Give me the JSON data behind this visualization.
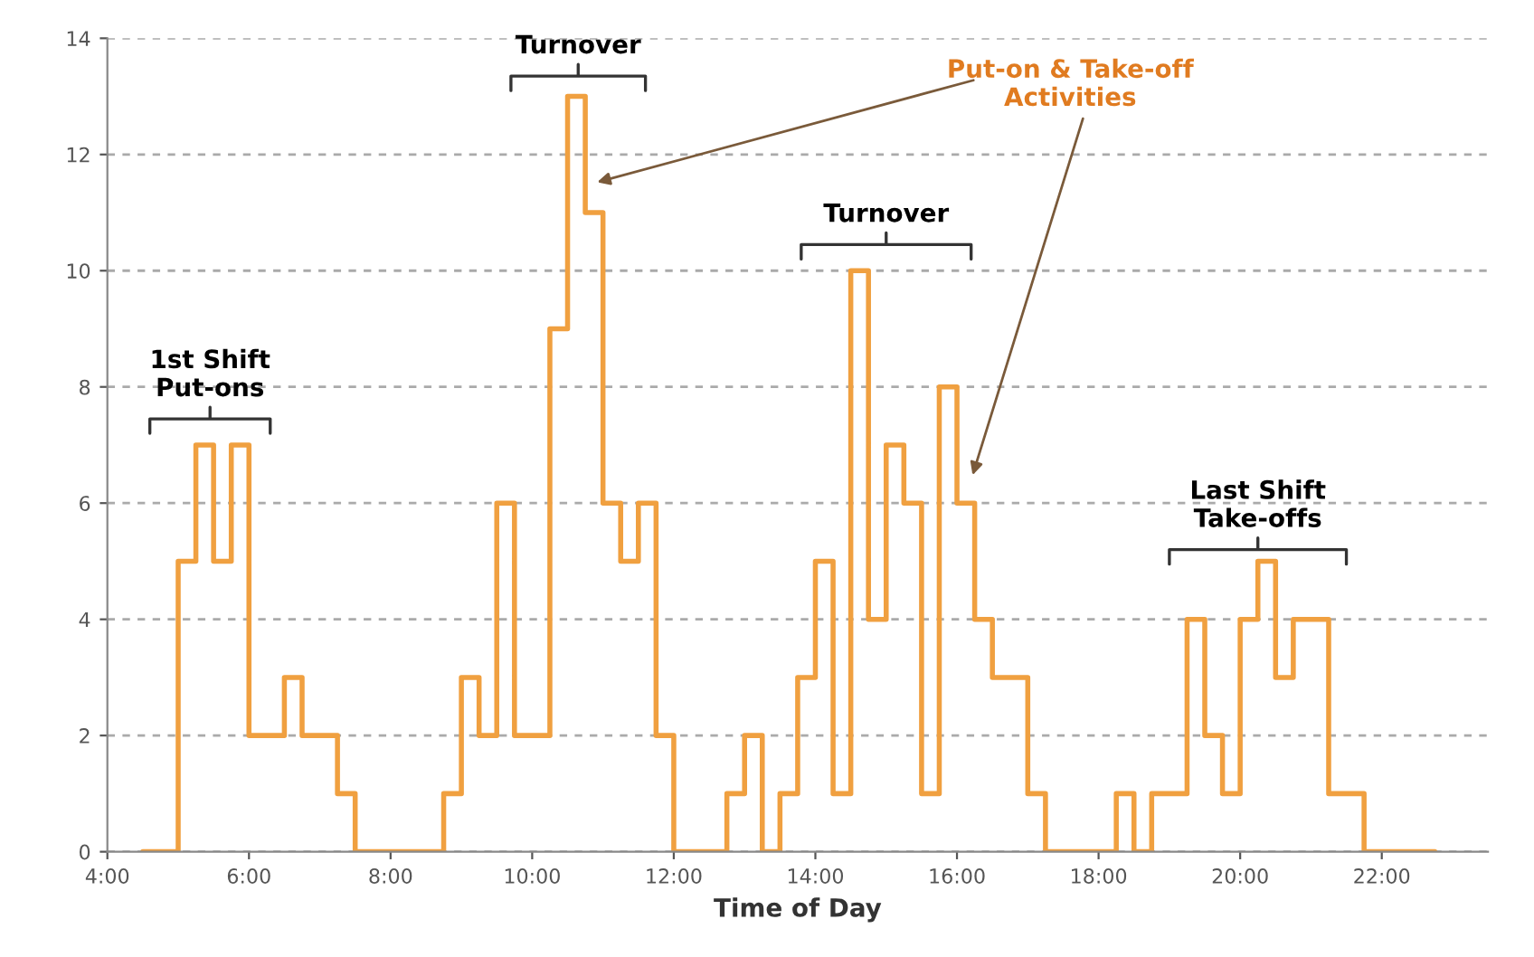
{
  "chart_data": {
    "type": "step",
    "xlabel": "Time of Day",
    "x": [
      4.5,
      4.75,
      5.0,
      5.25,
      5.5,
      5.75,
      6.0,
      6.25,
      6.5,
      6.75,
      7.0,
      7.25,
      7.5,
      7.75,
      8.0,
      8.25,
      8.5,
      8.75,
      9.0,
      9.25,
      9.5,
      9.75,
      10.0,
      10.25,
      10.5,
      10.75,
      11.0,
      11.25,
      11.5,
      11.75,
      12.0,
      12.25,
      12.5,
      12.75,
      13.0,
      13.25,
      13.5,
      13.75,
      14.0,
      14.25,
      14.5,
      14.75,
      15.0,
      15.25,
      15.5,
      15.75,
      16.0,
      16.25,
      16.5,
      16.75,
      17.0,
      17.25,
      17.5,
      17.75,
      18.0,
      18.25,
      18.5,
      18.75,
      19.0,
      19.25,
      19.5,
      19.75,
      20.0,
      20.25,
      20.5,
      20.75,
      21.0,
      21.25,
      21.5,
      21.75,
      22.0,
      22.25,
      22.5,
      22.75
    ],
    "series": [
      {
        "color": "#f0a040",
        "values": [
          0,
          0,
          5,
          7,
          5,
          7,
          2,
          2,
          3,
          2,
          2,
          1,
          0,
          0,
          0,
          0,
          0,
          1,
          3,
          2,
          6,
          2,
          2,
          9,
          13,
          11,
          6,
          5,
          6,
          2,
          0,
          0,
          0,
          1,
          2,
          0,
          1,
          3,
          5,
          1,
          10,
          4,
          7,
          6,
          1,
          8,
          6,
          4,
          3,
          3,
          1,
          0,
          0,
          0,
          0,
          1,
          0,
          1,
          1,
          4,
          2,
          1,
          4,
          5,
          3,
          4,
          4,
          1,
          1,
          0,
          0,
          0,
          0,
          0
        ]
      }
    ],
    "xlim": [
      4,
      23.5
    ],
    "ylim": [
      0,
      14
    ],
    "xticks": [
      {
        "value": 4,
        "label": "4:00"
      },
      {
        "value": 6,
        "label": "6:00"
      },
      {
        "value": 8,
        "label": "8:00"
      },
      {
        "value": 10,
        "label": "10:00"
      },
      {
        "value": 12,
        "label": "12:00"
      },
      {
        "value": 14,
        "label": "14:00"
      },
      {
        "value": 16,
        "label": "16:00"
      },
      {
        "value": 18,
        "label": "18:00"
      },
      {
        "value": 20,
        "label": "20:00"
      },
      {
        "value": 22,
        "label": "22:00"
      }
    ],
    "yticks": [
      0,
      2,
      4,
      6,
      8,
      10,
      12,
      14
    ],
    "grid": "y",
    "annotations": [
      "1st Shift\nPut-ons",
      "Turnover",
      "Turnover",
      "Last Shift\nTake-offs",
      {
        "text": "Put-on & Take-off\nActivities",
        "x": 10.85,
        "y": 11.5
      }
    ]
  }
}
